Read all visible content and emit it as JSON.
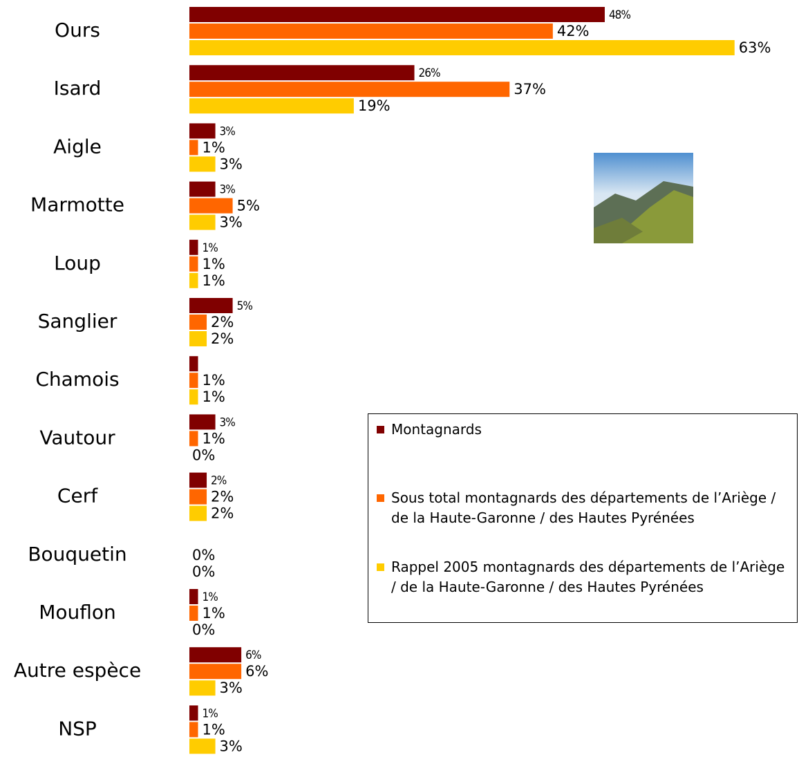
{
  "chart_data": {
    "type": "bar",
    "orientation": "horizontal",
    "categories": [
      "Ours",
      "Isard",
      "Aigle",
      "Marmotte",
      "Loup",
      "Sanglier",
      "Chamois",
      "Vautour",
      "Cerf",
      "Bouquetin",
      "Mouflon",
      "Autre espèce",
      "NSP"
    ],
    "series": [
      {
        "name": "Montagnards",
        "color": "#800000",
        "values": [
          48,
          26,
          3,
          3,
          1,
          5,
          1,
          3,
          2,
          null,
          1,
          6,
          1
        ],
        "value_labels": [
          "48%",
          "26%",
          "3%",
          "3%",
          "1%",
          "5%",
          null,
          "3%",
          "2%",
          null,
          "1%",
          "6%",
          "1%"
        ]
      },
      {
        "name": "Sous total montagnards des départements de l’Ariège / de la Haute-Garonne / des Hautes Pyrénées",
        "color": "#ff6600",
        "values": [
          42,
          37,
          1,
          5,
          1,
          2,
          1,
          1,
          2,
          0,
          1,
          6,
          1
        ],
        "value_labels": [
          "42%",
          "37%",
          "1%",
          "5%",
          "1%",
          "2%",
          "1%",
          "1%",
          "2%",
          "0%",
          "1%",
          "6%",
          "1%"
        ]
      },
      {
        "name": "Rappel 2005 montagnards des départements de l’Ariège / de la Haute-Garonne / des Hautes Pyrénées",
        "color": "#ffcc00",
        "values": [
          63,
          19,
          3,
          3,
          1,
          2,
          1,
          0,
          2,
          0,
          0,
          3,
          3
        ],
        "value_labels": [
          "63%",
          "19%",
          "3%",
          "3%",
          "1%",
          "2%",
          "1%",
          "0%",
          "2%",
          "0%",
          "0%",
          "3%",
          "3%"
        ]
      }
    ]
  }
}
